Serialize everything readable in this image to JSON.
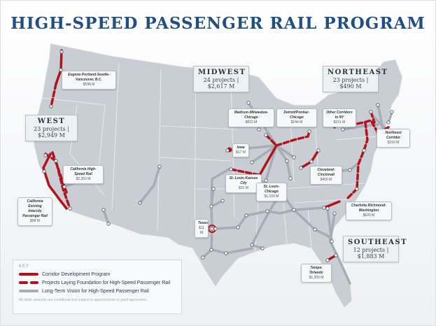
{
  "title": "HIGH-SPEED PASSENGER RAIL PROGRAM",
  "regions": {
    "west": {
      "name": "WEST",
      "projects": "23 projects",
      "amount": "$2,949 M"
    },
    "midwest": {
      "name": "MIDWEST",
      "projects": "24 projects",
      "amount": "$2,617 M"
    },
    "northeast": {
      "name": "NORTHEAST",
      "projects": "23 projects",
      "amount": "$490 M"
    },
    "southeast": {
      "name": "SOUTHEAST",
      "projects": "12 projects",
      "amount": "$1,883 M"
    }
  },
  "corridors": [
    {
      "name": "Eugene-Portland-Seattle-Vancouver, B.C.",
      "amount": "$598 M"
    },
    {
      "name": "California High-Speed Rail",
      "amount": "$2,250 M"
    },
    {
      "name": "California Existing Intercity Passenger Rail",
      "amount": "$99 M"
    },
    {
      "name": "Madison-Milwaukee-Chicago",
      "amount": "$822 M"
    },
    {
      "name": "Detroit/Pontiac-Chicago",
      "amount": "$244 M"
    },
    {
      "name": "Other Corridors in NY",
      "amount": "$151 M"
    },
    {
      "name": "Northeast Corridor",
      "amount": "$150 M"
    },
    {
      "name": "Iowa",
      "amount": "$17 M"
    },
    {
      "name": "St. Louis-Kansas City",
      "amount": "$31 M"
    },
    {
      "name": "St. Louis-Chicago",
      "amount": "$1,100 M"
    },
    {
      "name": "Cleveland-Cincinnati",
      "amount": "$400 M"
    },
    {
      "name": "Texas",
      "amount": "$11 M"
    },
    {
      "name": "Charlotte-Richmond-Washington",
      "amount": "$620 M"
    },
    {
      "name": "Tampa-Orlando",
      "amount": "$1,250 M"
    }
  ],
  "key": {
    "title": "KEY",
    "items": [
      {
        "label": "Corridor Development Program",
        "style": "solid-red"
      },
      {
        "label": "Projects Laying Foundation for High-Speed Passenger Rail",
        "style": "dashed-red"
      },
      {
        "label": "Long-Term Vision for High-Speed Passenger Rail",
        "style": "solid-gray"
      }
    ],
    "note": "All dollar amounts are conditional and subject to approval prior to grant agreement."
  },
  "colors": {
    "title": "#1f4f86",
    "corridor": "#b5121b",
    "vision": "#a6adb6",
    "land": "#c9ced5"
  }
}
